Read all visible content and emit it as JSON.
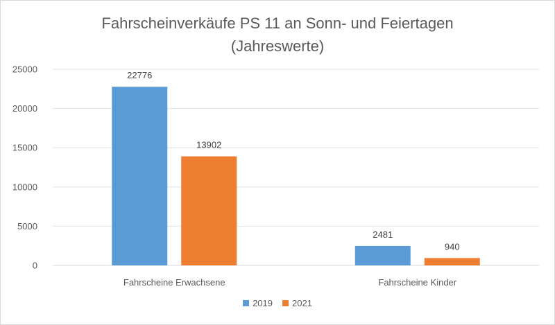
{
  "chart_data": {
    "type": "bar",
    "title_line1": "Fahrscheinverkäufe PS 11 an Sonn- und Feiertagen",
    "title_line2": "(Jahreswerte)",
    "categories": [
      "Fahrscheine Erwachsene",
      "Fahrscheine Kinder"
    ],
    "series": [
      {
        "name": "2019",
        "color": "#5b9bd5",
        "values": [
          22776,
          2481
        ]
      },
      {
        "name": "2021",
        "color": "#ed7d31",
        "values": [
          13902,
          940
        ]
      }
    ],
    "yticks": [
      "0",
      "5000",
      "10000",
      "15000",
      "20000",
      "25000"
    ],
    "ylim": [
      0,
      25000
    ],
    "grid": true,
    "legend_position": "bottom"
  }
}
